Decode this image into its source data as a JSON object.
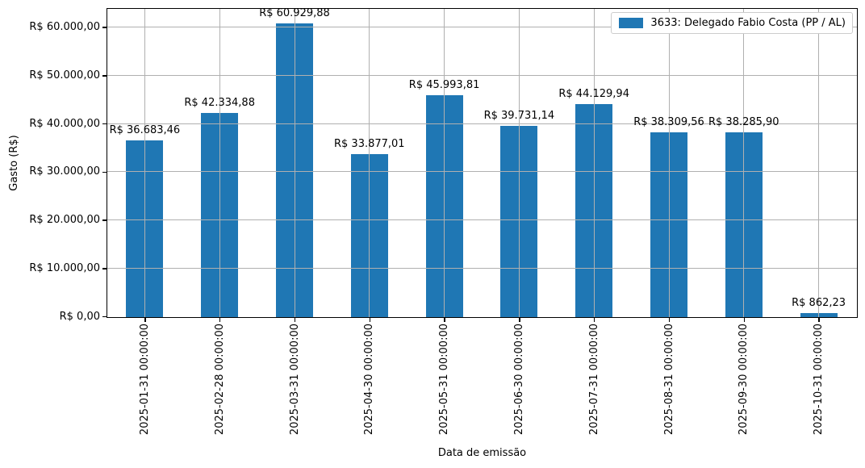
{
  "chart_data": {
    "type": "bar",
    "title": "",
    "xlabel": "Data de emissão",
    "ylabel": "Gasto (R$)",
    "legend": [
      "3633: Delegado Fabio Costa (PP / AL)"
    ],
    "legend_position": "upper right",
    "grid": true,
    "categories": [
      "2025-01-31 00:00:00",
      "2025-02-28 00:00:00",
      "2025-03-31 00:00:00",
      "2025-04-30 00:00:00",
      "2025-05-31 00:00:00",
      "2025-06-30 00:00:00",
      "2025-07-31 00:00:00",
      "2025-08-31 00:00:00",
      "2025-09-30 00:00:00",
      "2025-10-31 00:00:00"
    ],
    "values": [
      36683.46,
      42334.88,
      60929.88,
      33877.01,
      45993.81,
      39731.14,
      44129.94,
      38309.56,
      38285.9,
      862.23
    ],
    "bar_labels": [
      "R$ 36.683,46",
      "R$ 42.334,88",
      "R$ 60.929,88",
      "R$ 33.877,01",
      "R$ 45.993,81",
      "R$ 39.731,14",
      "R$ 44.129,94",
      "R$ 38.309,56",
      "R$ 38.285,90",
      "R$ 862,23"
    ],
    "yticks": [
      0,
      10000,
      20000,
      30000,
      40000,
      50000,
      60000
    ],
    "ytick_labels": [
      "R$ 0,00",
      "R$ 10.000,00",
      "R$ 20.000,00",
      "R$ 30.000,00",
      "R$ 40.000,00",
      "R$ 50.000,00",
      "R$ 60.000,00"
    ],
    "ylim": [
      0,
      63800
    ],
    "bar_color": "#1f77b4",
    "grid_color": "#b0b0b0",
    "spine_color": "#000000",
    "legend_border_color": "#cccccc"
  }
}
